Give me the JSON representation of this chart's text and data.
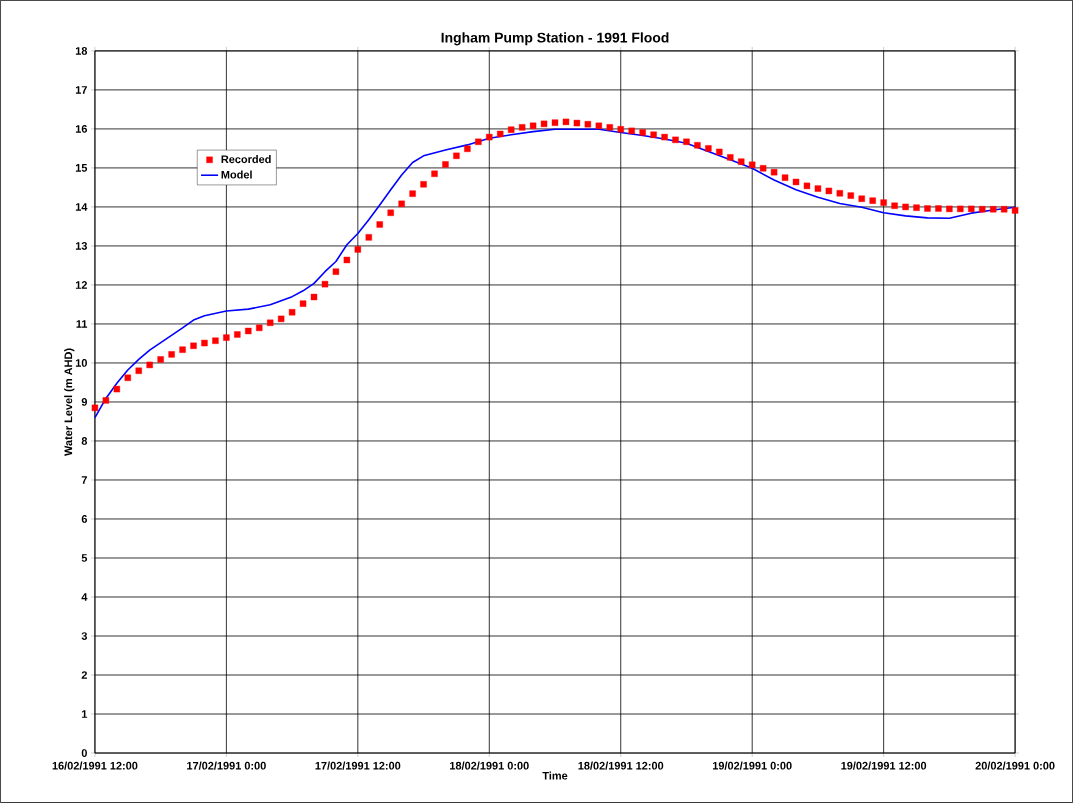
{
  "chart_data": {
    "type": "line",
    "title": "Ingham Pump Station - 1991 Flood",
    "xlabel": "Time",
    "ylabel": "Water Level (m AHD)",
    "xlim": [
      "1991-02-16T12:00",
      "1991-02-20T00:00"
    ],
    "xticks": [
      {
        "value": "1991-02-16T12:00",
        "label": "16/02/1991 12:00"
      },
      {
        "value": "1991-02-17T00:00",
        "label": "17/02/1991 0:00"
      },
      {
        "value": "1991-02-17T12:00",
        "label": "17/02/1991 12:00"
      },
      {
        "value": "1991-02-18T00:00",
        "label": "18/02/1991 0:00"
      },
      {
        "value": "1991-02-18T12:00",
        "label": "18/02/1991 12:00"
      },
      {
        "value": "1991-02-19T00:00",
        "label": "19/02/1991 0:00"
      },
      {
        "value": "1991-02-19T12:00",
        "label": "19/02/1991 12:00"
      },
      {
        "value": "1991-02-20T00:00",
        "label": "20/02/1991 0:00"
      }
    ],
    "ylim": [
      0,
      18
    ],
    "yticks": [
      0,
      1,
      2,
      3,
      4,
      5,
      6,
      7,
      8,
      9,
      10,
      11,
      12,
      13,
      14,
      15,
      16,
      17,
      18
    ],
    "grid": true,
    "legend": "top left",
    "series": [
      {
        "name": "Recorded",
        "type": "scatter",
        "marker": "square",
        "color": "#ff0000",
        "x": [
          "1991-02-16T12:00",
          "1991-02-16T13:00",
          "1991-02-16T14:00",
          "1991-02-16T15:00",
          "1991-02-16T16:00",
          "1991-02-16T17:00",
          "1991-02-16T18:00",
          "1991-02-16T19:00",
          "1991-02-16T20:00",
          "1991-02-16T21:00",
          "1991-02-16T22:00",
          "1991-02-16T23:00",
          "1991-02-17T00:00",
          "1991-02-17T01:00",
          "1991-02-17T02:00",
          "1991-02-17T03:00",
          "1991-02-17T04:00",
          "1991-02-17T05:00",
          "1991-02-17T06:00",
          "1991-02-17T07:00",
          "1991-02-17T08:00",
          "1991-02-17T09:00",
          "1991-02-17T10:00",
          "1991-02-17T11:00",
          "1991-02-17T12:00",
          "1991-02-17T13:00",
          "1991-02-17T14:00",
          "1991-02-17T15:00",
          "1991-02-17T16:00",
          "1991-02-17T17:00",
          "1991-02-17T18:00",
          "1991-02-17T19:00",
          "1991-02-17T20:00",
          "1991-02-17T21:00",
          "1991-02-17T22:00",
          "1991-02-17T23:00",
          "1991-02-18T00:00",
          "1991-02-18T01:00",
          "1991-02-18T02:00",
          "1991-02-18T03:00",
          "1991-02-18T04:00",
          "1991-02-18T05:00",
          "1991-02-18T06:00",
          "1991-02-18T07:00",
          "1991-02-18T08:00",
          "1991-02-18T09:00",
          "1991-02-18T10:00",
          "1991-02-18T11:00",
          "1991-02-18T12:00",
          "1991-02-18T13:00",
          "1991-02-18T14:00",
          "1991-02-18T15:00",
          "1991-02-18T16:00",
          "1991-02-18T17:00",
          "1991-02-18T18:00",
          "1991-02-18T19:00",
          "1991-02-18T20:00",
          "1991-02-18T21:00",
          "1991-02-18T22:00",
          "1991-02-18T23:00",
          "1991-02-19T00:00",
          "1991-02-19T01:00",
          "1991-02-19T02:00",
          "1991-02-19T03:00",
          "1991-02-19T04:00",
          "1991-02-19T05:00",
          "1991-02-19T06:00",
          "1991-02-19T07:00",
          "1991-02-19T08:00",
          "1991-02-19T09:00",
          "1991-02-19T10:00",
          "1991-02-19T11:00",
          "1991-02-19T12:00",
          "1991-02-19T13:00",
          "1991-02-19T14:00",
          "1991-02-19T15:00",
          "1991-02-19T16:00",
          "1991-02-19T17:00",
          "1991-02-19T18:00",
          "1991-02-19T19:00",
          "1991-02-19T20:00",
          "1991-02-19T21:00",
          "1991-02-19T22:00",
          "1991-02-19T23:00",
          "1991-02-20T00:00"
        ],
        "values": [
          8.85,
          9.04,
          9.33,
          9.62,
          9.8,
          9.95,
          10.09,
          10.22,
          10.34,
          10.44,
          10.51,
          10.57,
          10.65,
          10.73,
          10.82,
          10.9,
          11.03,
          11.13,
          11.3,
          11.52,
          11.69,
          12.02,
          12.34,
          12.64,
          12.91,
          13.22,
          13.55,
          13.85,
          14.08,
          14.34,
          14.58,
          14.85,
          15.09,
          15.31,
          15.49,
          15.67,
          15.79,
          15.87,
          15.98,
          16.04,
          16.08,
          16.13,
          16.16,
          16.18,
          16.15,
          16.12,
          16.08,
          16.04,
          15.99,
          15.95,
          15.91,
          15.85,
          15.79,
          15.72,
          15.67,
          15.58,
          15.5,
          15.41,
          15.27,
          15.16,
          15.08,
          14.99,
          14.89,
          14.75,
          14.64,
          14.54,
          14.47,
          14.41,
          14.35,
          14.29,
          14.21,
          14.16,
          14.11,
          14.03,
          14.0,
          13.98,
          13.96,
          13.96,
          13.95,
          13.95,
          13.95,
          13.94,
          13.94,
          13.94,
          13.91
        ]
      },
      {
        "name": "Model",
        "marker": "none",
        "line_style": "solid",
        "color": "#0000ff",
        "x": [
          "1991-02-16T12:00",
          "1991-02-16T13:00",
          "1991-02-16T14:00",
          "1991-02-16T15:00",
          "1991-02-16T16:00",
          "1991-02-16T17:00",
          "1991-02-16T18:00",
          "1991-02-16T19:00",
          "1991-02-16T20:00",
          "1991-02-16T21:00",
          "1991-02-16T22:00",
          "1991-02-17T00:00",
          "1991-02-17T02:00",
          "1991-02-17T04:00",
          "1991-02-17T06:00",
          "1991-02-17T07:00",
          "1991-02-17T08:00",
          "1991-02-17T09:00",
          "1991-02-17T10:00",
          "1991-02-17T11:00",
          "1991-02-17T12:00",
          "1991-02-17T13:00",
          "1991-02-17T14:00",
          "1991-02-17T15:00",
          "1991-02-17T16:00",
          "1991-02-17T17:00",
          "1991-02-17T18:00",
          "1991-02-17T20:00",
          "1991-02-17T22:00",
          "1991-02-18T00:00",
          "1991-02-18T02:00",
          "1991-02-18T04:00",
          "1991-02-18T06:00",
          "1991-02-18T08:00",
          "1991-02-18T10:00",
          "1991-02-18T12:00",
          "1991-02-18T14:00",
          "1991-02-18T16:00",
          "1991-02-18T18:00",
          "1991-02-18T20:00",
          "1991-02-18T22:00",
          "1991-02-19T00:00",
          "1991-02-19T02:00",
          "1991-02-19T04:00",
          "1991-02-19T06:00",
          "1991-02-19T08:00",
          "1991-02-19T10:00",
          "1991-02-19T12:00",
          "1991-02-19T14:00",
          "1991-02-19T16:00",
          "1991-02-19T18:00",
          "1991-02-19T20:00",
          "1991-02-19T22:00",
          "1991-02-20T00:00"
        ],
        "values": [
          8.6,
          9.09,
          9.48,
          9.82,
          10.09,
          10.33,
          10.52,
          10.71,
          10.9,
          11.1,
          11.21,
          11.33,
          11.38,
          11.49,
          11.7,
          11.85,
          12.04,
          12.34,
          12.6,
          13.03,
          13.32,
          13.67,
          14.05,
          14.44,
          14.82,
          15.14,
          15.31,
          15.46,
          15.59,
          15.76,
          15.85,
          15.93,
          15.99,
          15.99,
          15.99,
          15.91,
          15.83,
          15.74,
          15.63,
          15.42,
          15.21,
          14.99,
          14.69,
          14.44,
          14.25,
          14.09,
          13.99,
          13.85,
          13.77,
          13.72,
          13.71,
          13.84,
          13.92,
          13.99
        ]
      }
    ]
  }
}
